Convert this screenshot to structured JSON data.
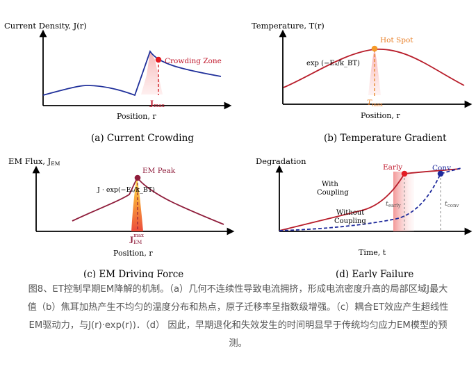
{
  "panels": {
    "a": {
      "ylabel": "Current Density, J(r)",
      "xlabel": "Position, r",
      "annotation": "Crowding Zone",
      "marker_label": "J",
      "marker_sub": "max",
      "caption": "(a) Current Crowding"
    },
    "b": {
      "ylabel": "Temperature, T(r)",
      "xlabel": "Position, r",
      "annotation": "Hot Spot",
      "formula": "exp (−Eₐ/k_BT)",
      "marker_label": "T",
      "marker_sub": "max",
      "caption": "(b) Temperature Gradient"
    },
    "c": {
      "ylabel": "EM Flux, J",
      "ylabel_sub": "EM",
      "xlabel": "Position, r",
      "annotation": "EM Peak",
      "formula": "J · exp(−Eₐ/k_BT)",
      "marker_label": "J",
      "marker_sub": "EM",
      "marker_sup": "max",
      "caption": "(c) EM Driving Force"
    },
    "d": {
      "ylabel": "Degradation",
      "xlabel": "Time, t",
      "annotation_early": "Early",
      "annotation_conv": "Conv",
      "label_with_1": "With",
      "label_with_2": "Coupling",
      "label_without_1": "Without",
      "label_without_2": "Coupling",
      "t_early": "t",
      "t_early_sub": "early",
      "t_conv": "t",
      "t_conv_sub": "conv",
      "caption": "(d) Early Failure"
    }
  },
  "colors": {
    "blue": "#1f2f9a",
    "red": "#b81d2a",
    "orange": "#f59a2a",
    "dark_red": "#8f1d3b",
    "conv_blue": "#1e2a9c",
    "accent_red": "#e31b23"
  },
  "figure_caption": {
    "line1": "图8、ET控制早期EM降解的机制。（a）几何不连续性导致电流拥挤，形成电流密度升高的局部区域J最大",
    "line2": "值（b）焦耳加热产生不均匀的温度分布和热点，原子迁移率呈指数级增强。（c）耦合ET效应产生超线性",
    "line3": "EM驱动力，与J(r)·exp(r))．（d） 因此，早期退化和失效发生的时间明显早于传统均匀应力EM模型的预",
    "line4": "测。"
  }
}
